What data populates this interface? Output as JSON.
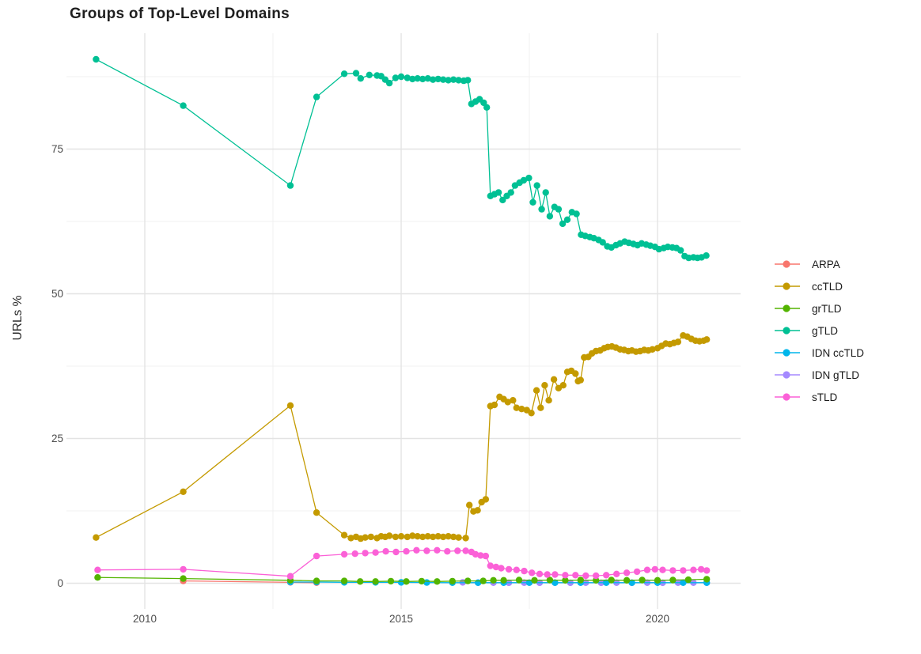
{
  "title": "Groups of Top-Level Domains",
  "axes": {
    "y_label": "URLs %",
    "x_tick_labels": [
      "2010",
      "2015",
      "2020"
    ],
    "y_tick_labels": [
      "0",
      "25",
      "50",
      "75"
    ]
  },
  "legend": {
    "items": [
      {
        "label": "ARPA",
        "color": "#F8766D"
      },
      {
        "label": "ccTLD",
        "color": "#C49A00"
      },
      {
        "label": "grTLD",
        "color": "#53B400"
      },
      {
        "label": "gTLD",
        "color": "#00C094"
      },
      {
        "label": "IDN ccTLD",
        "color": "#00B6EB"
      },
      {
        "label": "IDN gTLD",
        "color": "#A58AFF"
      },
      {
        "label": "sTLD",
        "color": "#FB61D7"
      }
    ]
  },
  "colors": {
    "background": "#FFFFFF",
    "grid_major": "#E3E3E3",
    "grid_minor": "#F1F1F1",
    "tick_text": "#4D4D4D",
    "title_text": "#1F1F1F"
  },
  "chart_data": {
    "type": "line",
    "title": "Groups of Top-Level Domains",
    "xlabel": "",
    "ylabel": "URLs %",
    "x_ticks": [
      2010,
      2015,
      2020
    ],
    "x_minor_ticks": [
      2012.5,
      2017.5
    ],
    "y_ticks": [
      0,
      25,
      50,
      75
    ],
    "y_minor_ticks": [
      12.5,
      37.5,
      62.5,
      87.5
    ],
    "xlim": [
      2008.45,
      2021.55
    ],
    "ylim": [
      -4.5,
      95.2
    ],
    "grid": true,
    "legend_position": "right",
    "draw_order": [
      "ARPA",
      "IDN gTLD",
      "IDN ccTLD",
      "grTLD",
      "ccTLD",
      "gTLD",
      "sTLD"
    ],
    "series": [
      {
        "name": "ARPA",
        "color": "#F8766D",
        "points": [
          [
            2010.75,
            0.4
          ],
          [
            2012.84,
            0.15
          ],
          [
            2013.35,
            0.1
          ]
        ]
      },
      {
        "name": "ccTLD",
        "color": "#C49A00",
        "points": [
          [
            2009.05,
            7.9
          ],
          [
            2010.75,
            15.8
          ],
          [
            2012.84,
            30.7
          ],
          [
            2013.35,
            12.2
          ],
          [
            2013.89,
            8.3
          ],
          [
            2014.02,
            7.8
          ],
          [
            2014.12,
            8.0
          ],
          [
            2014.21,
            7.7
          ],
          [
            2014.3,
            7.9
          ],
          [
            2014.41,
            8.0
          ],
          [
            2014.53,
            7.8
          ],
          [
            2014.61,
            8.1
          ],
          [
            2014.69,
            8.0
          ],
          [
            2014.77,
            8.2
          ],
          [
            2014.89,
            8.0
          ],
          [
            2015.0,
            8.1
          ],
          [
            2015.12,
            8.0
          ],
          [
            2015.22,
            8.2
          ],
          [
            2015.32,
            8.1
          ],
          [
            2015.42,
            8.0
          ],
          [
            2015.52,
            8.1
          ],
          [
            2015.62,
            8.0
          ],
          [
            2015.72,
            8.1
          ],
          [
            2015.82,
            8.0
          ],
          [
            2015.92,
            8.1
          ],
          [
            2016.02,
            8.0
          ],
          [
            2016.12,
            7.9
          ],
          [
            2016.26,
            7.8
          ],
          [
            2016.33,
            13.5
          ],
          [
            2016.41,
            12.4
          ],
          [
            2016.49,
            12.6
          ],
          [
            2016.57,
            14.0
          ],
          [
            2016.65,
            14.5
          ],
          [
            2016.74,
            30.6
          ],
          [
            2016.82,
            30.8
          ],
          [
            2016.92,
            32.2
          ],
          [
            2017.0,
            31.8
          ],
          [
            2017.08,
            31.3
          ],
          [
            2017.18,
            31.6
          ],
          [
            2017.25,
            30.3
          ],
          [
            2017.35,
            30.1
          ],
          [
            2017.45,
            29.9
          ],
          [
            2017.54,
            29.4
          ],
          [
            2017.64,
            33.3
          ],
          [
            2017.72,
            30.3
          ],
          [
            2017.8,
            34.2
          ],
          [
            2017.88,
            31.6
          ],
          [
            2017.98,
            35.2
          ],
          [
            2018.07,
            33.7
          ],
          [
            2018.16,
            34.2
          ],
          [
            2018.24,
            36.5
          ],
          [
            2018.32,
            36.7
          ],
          [
            2018.4,
            36.2
          ],
          [
            2018.45,
            34.9
          ],
          [
            2018.5,
            35.1
          ],
          [
            2018.57,
            39.0
          ],
          [
            2018.65,
            39.1
          ],
          [
            2018.72,
            39.7
          ],
          [
            2018.8,
            40.1
          ],
          [
            2018.88,
            40.2
          ],
          [
            2018.96,
            40.6
          ],
          [
            2019.03,
            40.8
          ],
          [
            2019.11,
            40.9
          ],
          [
            2019.19,
            40.7
          ],
          [
            2019.27,
            40.4
          ],
          [
            2019.35,
            40.3
          ],
          [
            2019.43,
            40.1
          ],
          [
            2019.5,
            40.2
          ],
          [
            2019.58,
            40.0
          ],
          [
            2019.66,
            40.1
          ],
          [
            2019.74,
            40.3
          ],
          [
            2019.82,
            40.2
          ],
          [
            2019.9,
            40.4
          ],
          [
            2020.0,
            40.6
          ],
          [
            2020.08,
            41.0
          ],
          [
            2020.16,
            41.4
          ],
          [
            2020.24,
            41.3
          ],
          [
            2020.32,
            41.5
          ],
          [
            2020.4,
            41.7
          ],
          [
            2020.5,
            42.8
          ],
          [
            2020.58,
            42.6
          ],
          [
            2020.66,
            42.2
          ],
          [
            2020.74,
            41.9
          ],
          [
            2020.82,
            41.8
          ],
          [
            2020.9,
            41.9
          ],
          [
            2020.96,
            42.1
          ]
        ]
      },
      {
        "name": "grTLD",
        "color": "#53B400",
        "points": [
          [
            2009.08,
            1.0
          ],
          [
            2010.75,
            0.8
          ],
          [
            2012.84,
            0.5
          ],
          [
            2013.35,
            0.4
          ],
          [
            2013.89,
            0.4
          ],
          [
            2014.2,
            0.3
          ],
          [
            2014.5,
            0.3
          ],
          [
            2014.8,
            0.35
          ],
          [
            2015.1,
            0.3
          ],
          [
            2015.4,
            0.35
          ],
          [
            2015.7,
            0.3
          ],
          [
            2016.0,
            0.35
          ],
          [
            2016.3,
            0.4
          ],
          [
            2016.6,
            0.4
          ],
          [
            2016.8,
            0.5
          ],
          [
            2017.0,
            0.5
          ],
          [
            2017.3,
            0.55
          ],
          [
            2017.6,
            0.5
          ],
          [
            2017.9,
            0.55
          ],
          [
            2018.2,
            0.5
          ],
          [
            2018.5,
            0.55
          ],
          [
            2018.8,
            0.5
          ],
          [
            2019.1,
            0.55
          ],
          [
            2019.4,
            0.5
          ],
          [
            2019.7,
            0.55
          ],
          [
            2020.0,
            0.5
          ],
          [
            2020.3,
            0.55
          ],
          [
            2020.6,
            0.6
          ],
          [
            2020.96,
            0.7
          ]
        ]
      },
      {
        "name": "gTLD",
        "color": "#00C094",
        "points": [
          [
            2009.05,
            90.5
          ],
          [
            2010.75,
            82.5
          ],
          [
            2012.84,
            68.7
          ],
          [
            2013.35,
            84.0
          ],
          [
            2013.89,
            88.0
          ],
          [
            2014.12,
            88.1
          ],
          [
            2014.21,
            87.2
          ],
          [
            2014.38,
            87.8
          ],
          [
            2014.53,
            87.7
          ],
          [
            2014.61,
            87.6
          ],
          [
            2014.69,
            87.0
          ],
          [
            2014.77,
            86.4
          ],
          [
            2014.89,
            87.3
          ],
          [
            2015.0,
            87.5
          ],
          [
            2015.12,
            87.3
          ],
          [
            2015.22,
            87.1
          ],
          [
            2015.32,
            87.2
          ],
          [
            2015.42,
            87.1
          ],
          [
            2015.52,
            87.2
          ],
          [
            2015.62,
            87.0
          ],
          [
            2015.72,
            87.1
          ],
          [
            2015.82,
            87.0
          ],
          [
            2015.92,
            86.9
          ],
          [
            2016.02,
            87.0
          ],
          [
            2016.12,
            86.9
          ],
          [
            2016.22,
            86.8
          ],
          [
            2016.3,
            86.9
          ],
          [
            2016.37,
            82.8
          ],
          [
            2016.45,
            83.2
          ],
          [
            2016.53,
            83.6
          ],
          [
            2016.61,
            83.0
          ],
          [
            2016.67,
            82.2
          ],
          [
            2016.74,
            66.9
          ],
          [
            2016.82,
            67.2
          ],
          [
            2016.9,
            67.5
          ],
          [
            2016.98,
            66.2
          ],
          [
            2017.06,
            66.9
          ],
          [
            2017.14,
            67.5
          ],
          [
            2017.22,
            68.7
          ],
          [
            2017.31,
            69.2
          ],
          [
            2017.39,
            69.6
          ],
          [
            2017.49,
            70.0
          ],
          [
            2017.57,
            65.8
          ],
          [
            2017.65,
            68.7
          ],
          [
            2017.74,
            64.6
          ],
          [
            2017.82,
            67.5
          ],
          [
            2017.9,
            63.4
          ],
          [
            2017.99,
            65.0
          ],
          [
            2018.07,
            64.6
          ],
          [
            2018.15,
            62.1
          ],
          [
            2018.24,
            62.8
          ],
          [
            2018.33,
            64.1
          ],
          [
            2018.42,
            63.8
          ],
          [
            2018.51,
            60.2
          ],
          [
            2018.59,
            60.0
          ],
          [
            2018.68,
            59.8
          ],
          [
            2018.76,
            59.6
          ],
          [
            2018.85,
            59.3
          ],
          [
            2018.93,
            58.9
          ],
          [
            2019.02,
            58.2
          ],
          [
            2019.1,
            58.0
          ],
          [
            2019.19,
            58.4
          ],
          [
            2019.27,
            58.7
          ],
          [
            2019.36,
            59.0
          ],
          [
            2019.44,
            58.8
          ],
          [
            2019.53,
            58.6
          ],
          [
            2019.61,
            58.4
          ],
          [
            2019.69,
            58.7
          ],
          [
            2019.78,
            58.5
          ],
          [
            2019.86,
            58.3
          ],
          [
            2019.95,
            58.1
          ],
          [
            2020.03,
            57.7
          ],
          [
            2020.12,
            57.9
          ],
          [
            2020.2,
            58.1
          ],
          [
            2020.29,
            58.0
          ],
          [
            2020.37,
            57.9
          ],
          [
            2020.45,
            57.5
          ],
          [
            2020.53,
            56.5
          ],
          [
            2020.61,
            56.2
          ],
          [
            2020.7,
            56.3
          ],
          [
            2020.78,
            56.2
          ],
          [
            2020.86,
            56.3
          ],
          [
            2020.95,
            56.6
          ]
        ]
      },
      {
        "name": "IDN ccTLD",
        "color": "#00B6EB",
        "points": [
          [
            2012.84,
            0.2
          ],
          [
            2013.35,
            0.2
          ],
          [
            2013.89,
            0.15
          ],
          [
            2014.5,
            0.15
          ],
          [
            2015.0,
            0.15
          ],
          [
            2015.5,
            0.12
          ],
          [
            2016.0,
            0.1
          ],
          [
            2016.5,
            0.1
          ],
          [
            2017.0,
            0.1
          ],
          [
            2017.5,
            0.1
          ],
          [
            2018.0,
            0.1
          ],
          [
            2018.5,
            0.1
          ],
          [
            2019.0,
            0.1
          ],
          [
            2019.5,
            0.1
          ],
          [
            2020.0,
            0.1
          ],
          [
            2020.5,
            0.1
          ],
          [
            2020.96,
            0.1
          ]
        ]
      },
      {
        "name": "IDN gTLD",
        "color": "#A58AFF",
        "points": [
          [
            2016.2,
            0.15
          ],
          [
            2016.5,
            0.1
          ],
          [
            2016.8,
            0.1
          ],
          [
            2017.1,
            0.08
          ],
          [
            2017.4,
            0.1
          ],
          [
            2017.7,
            0.08
          ],
          [
            2018.0,
            0.1
          ],
          [
            2018.3,
            0.08
          ],
          [
            2018.6,
            0.1
          ],
          [
            2018.9,
            0.08
          ],
          [
            2019.2,
            0.1
          ],
          [
            2019.5,
            0.08
          ],
          [
            2019.8,
            0.1
          ],
          [
            2020.1,
            0.08
          ],
          [
            2020.4,
            0.1
          ],
          [
            2020.7,
            0.1
          ],
          [
            2020.96,
            0.1
          ]
        ]
      },
      {
        "name": "sTLD",
        "color": "#FB61D7",
        "points": [
          [
            2009.08,
            2.3
          ],
          [
            2010.75,
            2.4
          ],
          [
            2012.84,
            1.2
          ],
          [
            2013.35,
            4.7
          ],
          [
            2013.89,
            5.0
          ],
          [
            2014.1,
            5.1
          ],
          [
            2014.3,
            5.2
          ],
          [
            2014.5,
            5.3
          ],
          [
            2014.7,
            5.5
          ],
          [
            2014.9,
            5.4
          ],
          [
            2015.1,
            5.5
          ],
          [
            2015.3,
            5.7
          ],
          [
            2015.5,
            5.6
          ],
          [
            2015.7,
            5.7
          ],
          [
            2015.9,
            5.5
          ],
          [
            2016.1,
            5.6
          ],
          [
            2016.26,
            5.6
          ],
          [
            2016.37,
            5.4
          ],
          [
            2016.45,
            5.0
          ],
          [
            2016.55,
            4.8
          ],
          [
            2016.65,
            4.7
          ],
          [
            2016.74,
            3.0
          ],
          [
            2016.85,
            2.8
          ],
          [
            2016.95,
            2.6
          ],
          [
            2017.1,
            2.4
          ],
          [
            2017.25,
            2.3
          ],
          [
            2017.4,
            2.1
          ],
          [
            2017.55,
            1.8
          ],
          [
            2017.7,
            1.6
          ],
          [
            2017.85,
            1.5
          ],
          [
            2018.0,
            1.5
          ],
          [
            2018.2,
            1.4
          ],
          [
            2018.4,
            1.4
          ],
          [
            2018.6,
            1.3
          ],
          [
            2018.8,
            1.3
          ],
          [
            2019.0,
            1.4
          ],
          [
            2019.2,
            1.6
          ],
          [
            2019.4,
            1.8
          ],
          [
            2019.6,
            2.0
          ],
          [
            2019.8,
            2.3
          ],
          [
            2019.95,
            2.4
          ],
          [
            2020.1,
            2.3
          ],
          [
            2020.3,
            2.2
          ],
          [
            2020.5,
            2.2
          ],
          [
            2020.7,
            2.3
          ],
          [
            2020.85,
            2.4
          ],
          [
            2020.96,
            2.2
          ]
        ]
      }
    ]
  }
}
